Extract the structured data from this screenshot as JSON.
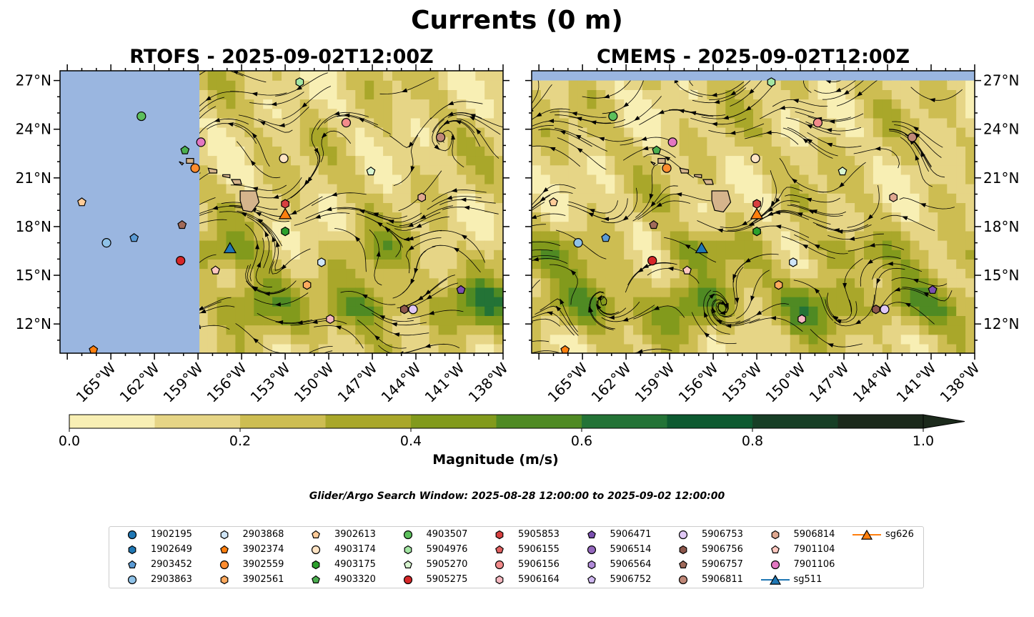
{
  "figure": {
    "title": "Currents (0 m)",
    "colorbar_label": "Magnitude (m/s)",
    "search_window": "Glider/Argo Search Window: 2025-08-28 12:00:00 to 2025-09-02 12:00:00",
    "colorbar_ticks": [
      "0.0",
      "0.2",
      "0.4",
      "0.6",
      "0.8",
      "1.0"
    ],
    "colorbar_colors": [
      "#f8efb4",
      "#e6d586",
      "#cdbd52",
      "#a9a72a",
      "#829a1c",
      "#4f8a23",
      "#237336",
      "#0d5a30",
      "#173f26",
      "#1c2a1c"
    ],
    "panel_background_color": "#f0e9a8",
    "land_color": "#d5b48c",
    "ocean_mask_color": "#9ab6e0"
  },
  "chart_data": [
    {
      "type": "heatmap",
      "title": "RTOFS - 2025-09-02T12:00Z",
      "xlim": [
        -168.5,
        -138
      ],
      "ylim": [
        10.2,
        27.6
      ],
      "x_tick_labels": [
        "165°W",
        "162°W",
        "159°W",
        "156°W",
        "153°W",
        "150°W",
        "147°W",
        "144°W",
        "141°W",
        "138°W"
      ],
      "y_tick_labels": [
        "12°N",
        "15°N",
        "18°N",
        "21°N",
        "24°N",
        "27°N"
      ],
      "no_data_region": {
        "lon_max": -158.9
      }
    },
    {
      "type": "heatmap",
      "title": "CMEMS - 2025-09-02T12:00Z",
      "xlim": [
        -168.5,
        -138
      ],
      "ylim": [
        10.2,
        27.6
      ],
      "x_tick_labels": [
        "165°W",
        "162°W",
        "159°W",
        "156°W",
        "153°W",
        "150°W",
        "147°W",
        "144°W",
        "141°W",
        "138°W"
      ],
      "y_tick_labels": [
        "12°N",
        "15°N",
        "18°N",
        "21°N",
        "24°N",
        "27°N"
      ],
      "no_data_region": {
        "lat_min": 27.0
      }
    }
  ],
  "platforms": [
    {
      "id": "1902195",
      "marker": "circle",
      "color": "#1f77b4",
      "lon": null,
      "lat": null
    },
    {
      "id": "1902649",
      "marker": "hexagon",
      "color": "#1f77b4",
      "lon": null,
      "lat": null
    },
    {
      "id": "2903452",
      "marker": "pentagon",
      "color": "#5b9bd5",
      "lon": -163.4,
      "lat": 17.3
    },
    {
      "id": "2903863",
      "marker": "circle",
      "color": "#8fc2e8",
      "lon": -165.3,
      "lat": 17.0
    },
    {
      "id": "2903868",
      "marker": "hexagon",
      "color": "#cfe5f7",
      "lon": -150.5,
      "lat": 15.8
    },
    {
      "id": "3902374",
      "marker": "pentagon",
      "color": "#ff7f0e",
      "lon": -166.2,
      "lat": 10.4
    },
    {
      "id": "3902559",
      "marker": "circle",
      "color": "#ff8c2e",
      "lon": -159.2,
      "lat": 21.6
    },
    {
      "id": "3902561",
      "marker": "hexagon",
      "color": "#ffaa5e",
      "lon": -151.5,
      "lat": 14.4
    },
    {
      "id": "3902613",
      "marker": "pentagon",
      "color": "#ffcc99",
      "lon": -167.0,
      "lat": 19.5
    },
    {
      "id": "4903174",
      "marker": "circle",
      "color": "#ffe4c4",
      "lon": -153.1,
      "lat": 22.2
    },
    {
      "id": "4903175",
      "marker": "hexagon",
      "color": "#2ca02c",
      "lon": -153.0,
      "lat": 17.7
    },
    {
      "id": "4903320",
      "marker": "pentagon",
      "color": "#4caf50",
      "lon": -159.9,
      "lat": 22.7
    },
    {
      "id": "4903507",
      "marker": "circle",
      "color": "#5cbf5c",
      "lon": -162.9,
      "lat": 24.8
    },
    {
      "id": "5904976",
      "marker": "hexagon",
      "color": "#a3e6a3",
      "lon": -152.0,
      "lat": 26.9
    },
    {
      "id": "5905270",
      "marker": "pentagon",
      "color": "#d8f5d0",
      "lon": -147.1,
      "lat": 21.4
    },
    {
      "id": "5905275",
      "marker": "circle",
      "color": "#d62728",
      "lon": -160.2,
      "lat": 15.9
    },
    {
      "id": "5905853",
      "marker": "hexagon",
      "color": "#d84040",
      "lon": -153.0,
      "lat": 19.4
    },
    {
      "id": "5906155",
      "marker": "pentagon",
      "color": "#e06060",
      "lon": null,
      "lat": null
    },
    {
      "id": "5906156",
      "marker": "circle",
      "color": "#f28b8b",
      "lon": -148.8,
      "lat": 24.4
    },
    {
      "id": "5906164",
      "marker": "hexagon",
      "color": "#f5b8c0",
      "lon": -149.9,
      "lat": 12.3
    },
    {
      "id": "5906471",
      "marker": "pentagon",
      "color": "#7b4fb0",
      "lon": -140.9,
      "lat": 14.1
    },
    {
      "id": "5906514",
      "marker": "circle",
      "color": "#9467bd",
      "lon": null,
      "lat": null
    },
    {
      "id": "5906564",
      "marker": "hexagon",
      "color": "#b08ad8",
      "lon": null,
      "lat": null
    },
    {
      "id": "5906752",
      "marker": "pentagon",
      "color": "#d0b8f0",
      "lon": null,
      "lat": null
    },
    {
      "id": "5906753",
      "marker": "circle",
      "color": "#e0c8f5",
      "lon": -144.2,
      "lat": 12.9
    },
    {
      "id": "5906756",
      "marker": "hexagon",
      "color": "#8c564b",
      "lon": -144.8,
      "lat": 12.9
    },
    {
      "id": "5906757",
      "marker": "pentagon",
      "color": "#a06a5a",
      "lon": -160.1,
      "lat": 18.1
    },
    {
      "id": "5906811",
      "marker": "circle",
      "color": "#c08878",
      "lon": -142.3,
      "lat": 23.5
    },
    {
      "id": "5906814",
      "marker": "hexagon",
      "color": "#e0a890",
      "lon": -143.6,
      "lat": 19.8
    },
    {
      "id": "7901104",
      "marker": "pentagon",
      "color": "#ffc8c0",
      "lon": -157.8,
      "lat": 15.3
    },
    {
      "id": "7901106",
      "marker": "circle",
      "color": "#e377c2",
      "lon": -158.8,
      "lat": 23.2
    },
    {
      "id": "sg511",
      "marker": "triangle",
      "color": "#1f77b4",
      "line": true,
      "lon": -156.8,
      "lat": 16.7
    },
    {
      "id": "sg626",
      "marker": "triangle",
      "color": "#ff7f0e",
      "line": true,
      "lon": -153.0,
      "lat": 18.8
    }
  ]
}
